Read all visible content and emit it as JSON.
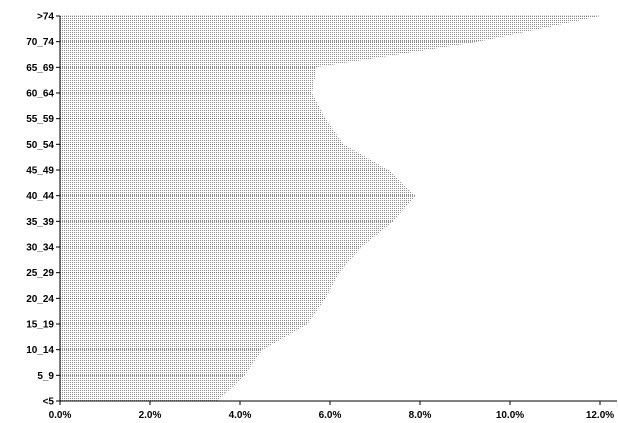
{
  "chart_data": {
    "type": "bar",
    "orientation": "horizontal",
    "title": "",
    "xlabel": "",
    "ylabel": "",
    "categories": [
      ">74",
      "70_74",
      "65_69",
      "60_64",
      "55_59",
      "50_54",
      "45_49",
      "40_44",
      "35_39",
      "30_34",
      "25_29",
      "20_24",
      "15_19",
      "10_14",
      "5_9",
      "<5"
    ],
    "values": [
      12.0,
      9.3,
      5.7,
      5.6,
      5.9,
      6.3,
      7.3,
      7.9,
      7.4,
      6.7,
      6.2,
      5.9,
      5.5,
      4.5,
      4.1,
      3.5
    ],
    "xlim": [
      0,
      12
    ],
    "x_ticks": [
      "0.0%",
      "2.0%",
      "4.0%",
      "6.0%",
      "8.0%",
      "10.0%",
      "12.0%"
    ],
    "grid": false,
    "fill_pattern": "horizontal-hatch",
    "bar_color": "#555555"
  }
}
